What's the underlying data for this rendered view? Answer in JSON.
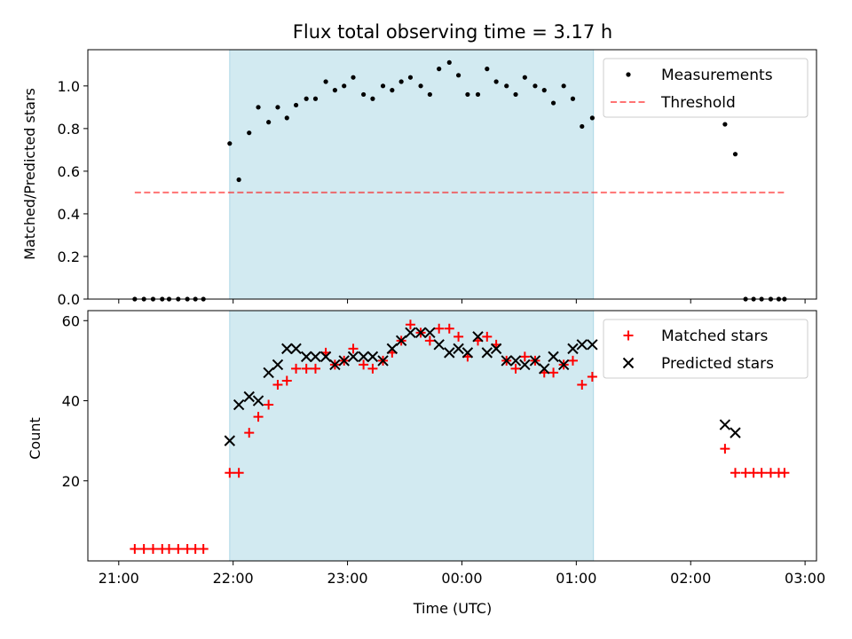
{
  "title": "Flux total observing time = 3.17 h",
  "colors": {
    "shade": "#add8e6",
    "measurement": "#000000",
    "threshold": "#ff0000",
    "matched": "#ff0000",
    "predicted": "#000000"
  },
  "chart_data": [
    {
      "type": "scatter",
      "name": "ratio",
      "ylabel": "Matched/Predicted stars",
      "xlim": [
        -0.27,
        6.1
      ],
      "ylim": [
        0,
        1.17
      ],
      "yticks": [
        0.0,
        0.2,
        0.4,
        0.6,
        0.8,
        1.0
      ],
      "ytick_labels": [
        "0.0",
        "0.2",
        "0.4",
        "0.6",
        "0.8",
        "1.0"
      ],
      "shaded_span": [
        0.97,
        4.15
      ],
      "legend": {
        "position": "upper-right",
        "entries": [
          "Measurements",
          "Threshold"
        ]
      },
      "threshold": {
        "name": "Threshold",
        "value": 0.5,
        "x": [
          0.14,
          5.82
        ]
      },
      "series": [
        {
          "name": "Measurements",
          "marker": "dot",
          "x": [
            0.14,
            0.22,
            0.3,
            0.38,
            0.44,
            0.52,
            0.6,
            0.67,
            0.74,
            0.97,
            1.05,
            1.14,
            1.22,
            1.31,
            1.39,
            1.47,
            1.55,
            1.64,
            1.72,
            1.81,
            1.89,
            1.97,
            2.05,
            2.14,
            2.22,
            2.31,
            2.39,
            2.47,
            2.55,
            2.64,
            2.72,
            2.8,
            2.89,
            2.97,
            3.05,
            3.14,
            3.22,
            3.3,
            3.39,
            3.47,
            3.55,
            3.64,
            3.72,
            3.8,
            3.89,
            3.97,
            4.05,
            4.14,
            5.3,
            5.39,
            5.48,
            5.55,
            5.62,
            5.7,
            5.77,
            5.82
          ],
          "y": [
            0,
            0,
            0,
            0,
            0,
            0,
            0,
            0,
            0,
            0.73,
            0.56,
            0.78,
            0.9,
            0.83,
            0.9,
            0.85,
            0.91,
            0.94,
            0.94,
            1.02,
            0.98,
            1.0,
            1.04,
            0.96,
            0.94,
            1.0,
            0.98,
            1.02,
            1.04,
            1.0,
            0.96,
            1.08,
            1.11,
            1.05,
            0.96,
            0.96,
            1.08,
            1.02,
            1.0,
            0.96,
            1.04,
            1.0,
            0.98,
            0.92,
            1.0,
            0.94,
            0.81,
            0.85,
            0.82,
            0.68,
            0,
            0,
            0,
            0,
            0,
            0
          ]
        }
      ]
    },
    {
      "type": "scatter",
      "name": "counts",
      "xlabel": "Time (UTC)",
      "ylabel": "Count",
      "xlim": [
        -0.27,
        6.1
      ],
      "ylim": [
        0,
        62.5
      ],
      "yticks": [
        20,
        40,
        60
      ],
      "ytick_labels": [
        "20",
        "40",
        "60"
      ],
      "xticks": [
        0,
        1,
        2,
        3,
        4,
        5,
        6
      ],
      "xtick_labels": [
        "21:00",
        "22:00",
        "23:00",
        "00:00",
        "01:00",
        "02:00",
        "03:00"
      ],
      "shaded_span": [
        0.97,
        4.15
      ],
      "legend": {
        "position": "upper-right",
        "entries": [
          "Matched stars",
          "Predicted stars"
        ]
      },
      "series": [
        {
          "name": "Matched stars",
          "marker": "plus",
          "x": [
            0.14,
            0.22,
            0.3,
            0.38,
            0.44,
            0.52,
            0.6,
            0.67,
            0.74,
            0.97,
            1.05,
            1.14,
            1.22,
            1.31,
            1.39,
            1.47,
            1.55,
            1.64,
            1.72,
            1.81,
            1.89,
            1.97,
            2.05,
            2.14,
            2.22,
            2.31,
            2.39,
            2.47,
            2.55,
            2.64,
            2.72,
            2.8,
            2.89,
            2.97,
            3.05,
            3.14,
            3.22,
            3.3,
            3.39,
            3.47,
            3.55,
            3.64,
            3.72,
            3.8,
            3.89,
            3.97,
            4.05,
            4.14,
            5.3,
            5.39,
            5.48,
            5.55,
            5.62,
            5.7,
            5.77,
            5.82
          ],
          "y": [
            3,
            3,
            3,
            3,
            3,
            3,
            3,
            3,
            3,
            22,
            22,
            32,
            36,
            39,
            44,
            45,
            48,
            48,
            48,
            52,
            49,
            50,
            53,
            49,
            48,
            50,
            52,
            55,
            59,
            57,
            55,
            58,
            58,
            56,
            51,
            55,
            56,
            54,
            50,
            48,
            51,
            50,
            47,
            47,
            49,
            50,
            44,
            46,
            28,
            22,
            22,
            22,
            22,
            22,
            22,
            22
          ]
        },
        {
          "name": "Predicted stars",
          "marker": "x",
          "x": [
            0.97,
            1.05,
            1.14,
            1.22,
            1.31,
            1.39,
            1.47,
            1.55,
            1.64,
            1.72,
            1.81,
            1.89,
            1.97,
            2.05,
            2.14,
            2.22,
            2.31,
            2.39,
            2.47,
            2.55,
            2.64,
            2.72,
            2.8,
            2.89,
            2.97,
            3.05,
            3.14,
            3.22,
            3.3,
            3.39,
            3.47,
            3.55,
            3.64,
            3.72,
            3.8,
            3.89,
            3.97,
            4.05,
            4.14,
            5.3,
            5.39
          ],
          "y": [
            30,
            39,
            41,
            40,
            47,
            49,
            53,
            53,
            51,
            51,
            51,
            49,
            50,
            51,
            51,
            51,
            50,
            53,
            55,
            57,
            57,
            57,
            54,
            52,
            53,
            52,
            56,
            52,
            53,
            50,
            50,
            49,
            50,
            48,
            51,
            49,
            53,
            54,
            54,
            34,
            32
          ]
        }
      ]
    }
  ]
}
